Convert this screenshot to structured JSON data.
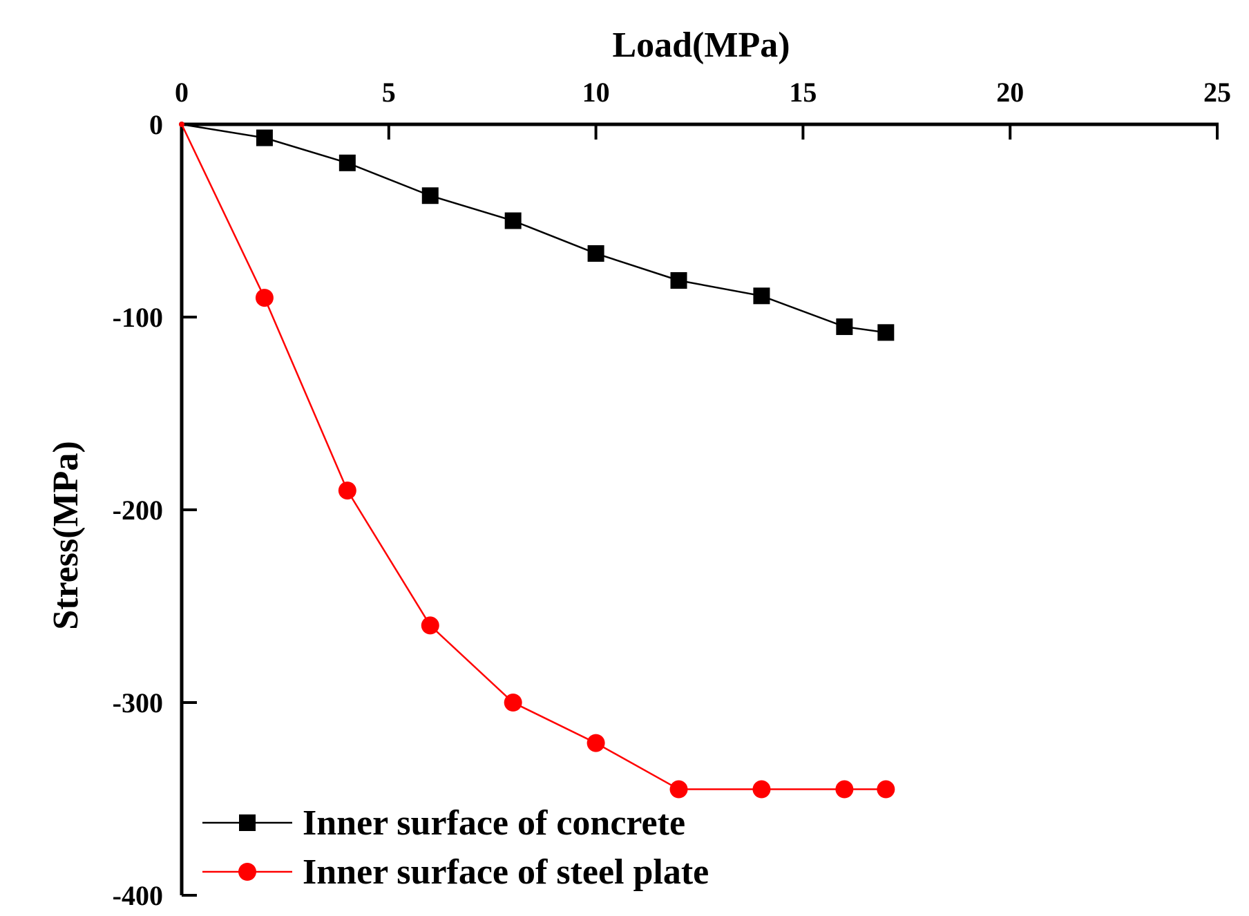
{
  "chart_data": {
    "type": "line",
    "title": "",
    "xlabel": "Load(MPa)",
    "ylabel": "Stress(MPa)",
    "xlim": [
      0,
      25
    ],
    "ylim": [
      -400,
      0
    ],
    "xticks": [
      0,
      5,
      10,
      15,
      20,
      25
    ],
    "yticks": [
      0,
      -100,
      -200,
      -300,
      -400
    ],
    "xtick_labels": [
      "0",
      "5",
      "10",
      "15",
      "20",
      "25"
    ],
    "ytick_labels": [
      "0",
      "-100",
      "-200",
      "-300",
      "-400"
    ],
    "x_axis_position": "top",
    "grid": false,
    "legend_position": "bottom-left",
    "series": [
      {
        "name": "Inner surface of concrete",
        "color": "#000000",
        "marker": "square",
        "x": [
          0,
          2,
          4,
          6,
          8,
          10,
          12,
          14,
          16,
          17
        ],
        "y": [
          0,
          -7,
          -20,
          -37,
          -50,
          -67,
          -81,
          -89,
          -105,
          -108
        ]
      },
      {
        "name": "Inner surface of steel plate",
        "color": "#ff0000",
        "marker": "circle",
        "x": [
          0,
          2,
          4,
          6,
          8,
          10,
          12,
          14,
          16,
          17
        ],
        "y": [
          0,
          -90,
          -190,
          -260,
          -300,
          -321,
          -345,
          -345,
          -345,
          -345
        ]
      }
    ]
  }
}
